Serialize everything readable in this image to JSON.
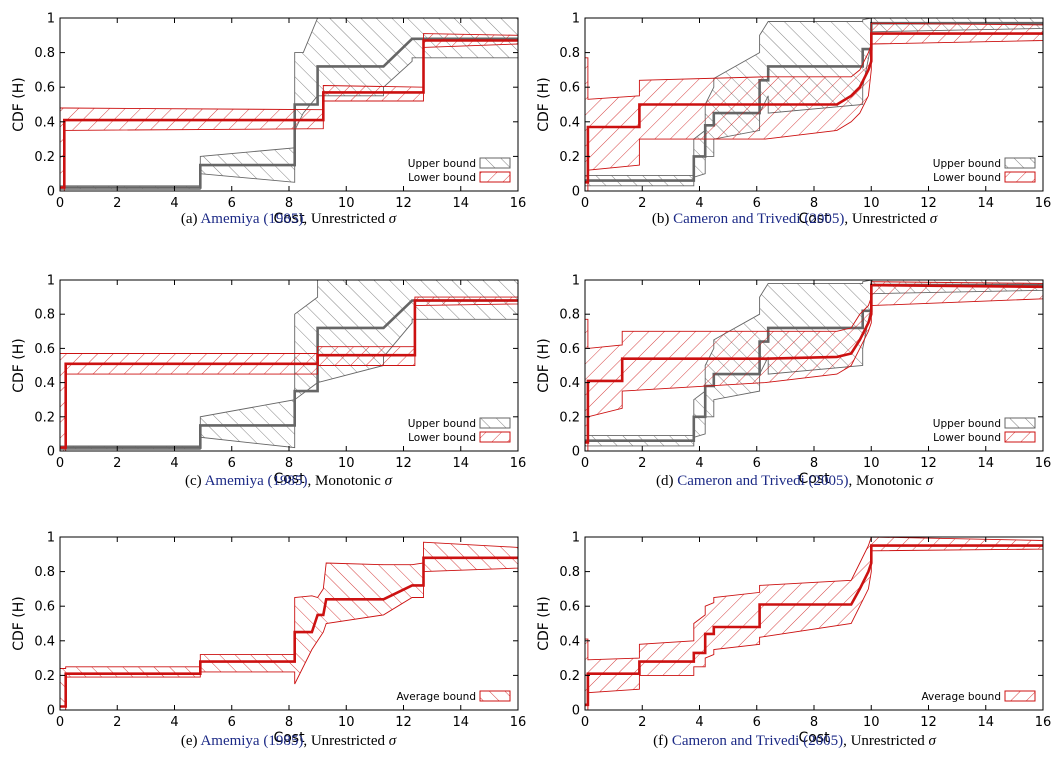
{
  "chart_data": [
    {
      "type": "line",
      "panel_id": "a",
      "xlabel": "Cost",
      "ylabel": "CDF (H)",
      "xlim": [
        0,
        16
      ],
      "ylim": [
        0,
        1
      ],
      "xticks": [
        "0",
        "2",
        "4",
        "6",
        "8",
        "10",
        "12",
        "14",
        "16"
      ],
      "yticks": [
        "0",
        "0.2",
        "0.4",
        "0.6",
        "0.8",
        "1"
      ],
      "legend_position": "bottom-right",
      "caption": {
        "label": "(a)",
        "ref_author": "Amemiya",
        "ref_year": "1985",
        "text": ", Unrestricted",
        "symbol": "σ"
      },
      "series": [
        {
          "name": "Upper bound",
          "color": "#666666",
          "hatch": "backslash",
          "x": [
            0,
            4.9,
            4.9,
            8.2,
            8.2,
            8.5,
            8.5,
            9.0,
            9.0,
            11.3,
            11.3,
            12.3,
            12.3,
            16
          ],
          "mid": [
            0.02,
            0.02,
            0.15,
            0.15,
            0.5,
            0.5,
            0.5,
            0.5,
            0.72,
            0.72,
            0.72,
            0.88,
            0.88,
            0.88
          ],
          "lo": [
            0.01,
            0.01,
            0.1,
            0.05,
            0.35,
            0.45,
            0.45,
            0.55,
            0.55,
            0.55,
            0.6,
            0.75,
            0.77,
            0.77
          ],
          "hi": [
            0.03,
            0.03,
            0.2,
            0.25,
            0.8,
            0.8,
            0.8,
            1.0,
            1.0,
            1.0,
            1.0,
            1.0,
            1.0,
            1.0
          ]
        },
        {
          "name": "Lower bound",
          "color": "#cc1111",
          "hatch": "slash",
          "x": [
            0,
            0.15,
            0.15,
            9.2,
            9.2,
            12.7,
            12.7,
            16
          ],
          "mid": [
            0.02,
            0.02,
            0.41,
            0.41,
            0.57,
            0.57,
            0.87,
            0.87
          ],
          "lo": [
            0.0,
            0.0,
            0.35,
            0.36,
            0.52,
            0.52,
            0.83,
            0.85
          ],
          "hi": [
            0.48,
            0.48,
            0.48,
            0.47,
            0.61,
            0.6,
            0.91,
            0.9
          ]
        }
      ]
    },
    {
      "type": "line",
      "panel_id": "b",
      "xlabel": "Cost",
      "ylabel": "CDF (H)",
      "xlim": [
        0,
        16
      ],
      "ylim": [
        0,
        1
      ],
      "xticks": [
        "0",
        "2",
        "4",
        "6",
        "8",
        "10",
        "12",
        "14",
        "16"
      ],
      "yticks": [
        "0",
        "0.2",
        "0.4",
        "0.6",
        "0.8",
        "1"
      ],
      "legend_position": "bottom-right",
      "caption": {
        "label": "(b)",
        "ref_author": "Cameron and Trivedi",
        "ref_year": "2005",
        "text": ", Unrestricted",
        "symbol": "σ"
      },
      "series": [
        {
          "name": "Upper bound",
          "color": "#666666",
          "hatch": "backslash",
          "x": [
            0,
            3.8,
            3.8,
            4.2,
            4.2,
            4.5,
            4.5,
            6.1,
            6.1,
            6.4,
            6.4,
            9.7,
            9.7,
            10.0,
            10.0,
            16
          ],
          "mid": [
            0.06,
            0.06,
            0.2,
            0.2,
            0.38,
            0.38,
            0.45,
            0.45,
            0.64,
            0.64,
            0.72,
            0.72,
            0.82,
            0.82,
            0.97,
            0.97
          ],
          "lo": [
            0.03,
            0.03,
            0.08,
            0.1,
            0.2,
            0.2,
            0.3,
            0.35,
            0.45,
            0.55,
            0.45,
            0.5,
            0.6,
            0.85,
            0.92,
            0.94
          ],
          "hi": [
            0.09,
            0.09,
            0.3,
            0.35,
            0.5,
            0.6,
            0.65,
            0.8,
            0.9,
            0.98,
            0.98,
            0.98,
            0.99,
            1.0,
            1.0,
            1.0
          ]
        },
        {
          "name": "Lower bound",
          "color": "#cc1111",
          "hatch": "slash",
          "x": [
            0,
            0.1,
            0.1,
            1.9,
            1.9,
            6.3,
            6.3,
            8.8,
            9.3,
            9.6,
            9.9,
            10.0,
            10.0,
            16
          ],
          "mid": [
            0.05,
            0.05,
            0.37,
            0.37,
            0.5,
            0.5,
            0.5,
            0.5,
            0.55,
            0.6,
            0.7,
            0.75,
            0.91,
            0.91
          ],
          "lo": [
            0.0,
            0.0,
            0.12,
            0.15,
            0.3,
            0.3,
            0.3,
            0.35,
            0.4,
            0.45,
            0.55,
            0.7,
            0.85,
            0.87
          ],
          "hi": [
            0.77,
            0.77,
            0.53,
            0.55,
            0.64,
            0.66,
            0.66,
            0.66,
            0.66,
            0.7,
            0.8,
            0.85,
            0.97,
            0.96
          ]
        }
      ]
    },
    {
      "type": "line",
      "panel_id": "c",
      "xlabel": "Cost",
      "ylabel": "CDF (H)",
      "xlim": [
        0,
        16
      ],
      "ylim": [
        0,
        1
      ],
      "xticks": [
        "0",
        "2",
        "4",
        "6",
        "8",
        "10",
        "12",
        "14",
        "16"
      ],
      "yticks": [
        "0",
        "0.2",
        "0.4",
        "0.6",
        "0.8",
        "1"
      ],
      "legend_position": "bottom-right",
      "caption": {
        "label": "(c)",
        "ref_author": "Amemiya",
        "ref_year": "1985",
        "text": ", Monotonic",
        "symbol": "σ"
      },
      "series": [
        {
          "name": "Upper bound",
          "color": "#666666",
          "hatch": "backslash",
          "x": [
            0,
            4.9,
            4.9,
            8.2,
            8.2,
            9.0,
            9.0,
            11.3,
            11.3,
            12.3,
            12.3,
            16
          ],
          "mid": [
            0.02,
            0.02,
            0.15,
            0.15,
            0.35,
            0.35,
            0.72,
            0.72,
            0.72,
            0.88,
            0.88,
            0.88
          ],
          "lo": [
            0.01,
            0.01,
            0.08,
            0.02,
            0.3,
            0.4,
            0.4,
            0.5,
            0.55,
            0.75,
            0.77,
            0.77
          ],
          "hi": [
            0.03,
            0.03,
            0.2,
            0.3,
            0.8,
            0.9,
            1.0,
            1.0,
            1.0,
            1.0,
            1.0,
            1.0
          ]
        },
        {
          "name": "Lower bound",
          "color": "#cc1111",
          "hatch": "slash",
          "x": [
            0,
            0.2,
            0.2,
            9.0,
            9.0,
            12.4,
            12.4,
            16
          ],
          "mid": [
            0.02,
            0.02,
            0.51,
            0.51,
            0.56,
            0.56,
            0.88,
            0.88
          ],
          "lo": [
            0.0,
            0.0,
            0.45,
            0.45,
            0.5,
            0.5,
            0.85,
            0.86
          ],
          "hi": [
            0.57,
            0.57,
            0.57,
            0.57,
            0.61,
            0.61,
            0.9,
            0.9
          ]
        }
      ]
    },
    {
      "type": "line",
      "panel_id": "d",
      "xlabel": "Cost",
      "ylabel": "CDF (H)",
      "xlim": [
        0,
        16
      ],
      "ylim": [
        0,
        1
      ],
      "xticks": [
        "0",
        "2",
        "4",
        "6",
        "8",
        "10",
        "12",
        "14",
        "16"
      ],
      "yticks": [
        "0",
        "0.2",
        "0.4",
        "0.6",
        "0.8",
        "1"
      ],
      "legend_position": "bottom-right",
      "caption": {
        "label": "(d)",
        "ref_author": "Cameron and Trivedi",
        "ref_year": "2005",
        "text": ", Monotonic",
        "symbol": "σ"
      },
      "series": [
        {
          "name": "Upper bound",
          "color": "#666666",
          "hatch": "backslash",
          "x": [
            0,
            3.8,
            3.8,
            4.2,
            4.2,
            4.5,
            4.5,
            6.1,
            6.1,
            6.4,
            6.4,
            9.7,
            9.7,
            10.0,
            10.0,
            16
          ],
          "mid": [
            0.06,
            0.06,
            0.2,
            0.2,
            0.38,
            0.38,
            0.45,
            0.45,
            0.64,
            0.64,
            0.72,
            0.72,
            0.82,
            0.82,
            0.97,
            0.97
          ],
          "lo": [
            0.03,
            0.03,
            0.08,
            0.1,
            0.2,
            0.2,
            0.3,
            0.35,
            0.45,
            0.55,
            0.45,
            0.5,
            0.6,
            0.85,
            0.92,
            0.94
          ],
          "hi": [
            0.09,
            0.09,
            0.3,
            0.35,
            0.5,
            0.6,
            0.65,
            0.8,
            0.9,
            0.98,
            0.98,
            0.98,
            0.99,
            1.0,
            1.0,
            1.0
          ]
        },
        {
          "name": "Lower bound",
          "color": "#cc1111",
          "hatch": "slash",
          "x": [
            0,
            0.1,
            0.1,
            1.3,
            1.3,
            6.3,
            8.8,
            9.3,
            9.6,
            9.9,
            10.0,
            10.0,
            16
          ],
          "mid": [
            0.05,
            0.05,
            0.41,
            0.41,
            0.54,
            0.54,
            0.55,
            0.57,
            0.65,
            0.75,
            0.8,
            0.97,
            0.96
          ],
          "lo": [
            0.0,
            0.0,
            0.2,
            0.25,
            0.35,
            0.4,
            0.45,
            0.5,
            0.6,
            0.7,
            0.75,
            0.85,
            0.89
          ],
          "hi": [
            0.77,
            0.77,
            0.6,
            0.62,
            0.7,
            0.7,
            0.7,
            0.72,
            0.8,
            0.85,
            0.9,
            0.99,
            0.98
          ]
        }
      ]
    },
    {
      "type": "line",
      "panel_id": "e",
      "xlabel": "Cost",
      "ylabel": "CDF (H)",
      "xlim": [
        0,
        16
      ],
      "ylim": [
        0,
        1
      ],
      "xticks": [
        "0",
        "2",
        "4",
        "6",
        "8",
        "10",
        "12",
        "14",
        "16"
      ],
      "yticks": [
        "0",
        "0.2",
        "0.4",
        "0.6",
        "0.8",
        "1"
      ],
      "legend_position": "bottom-right",
      "caption": {
        "label": "(e)",
        "ref_author": "Amemiya",
        "ref_year": "1985",
        "text": ", Unrestricted",
        "symbol": "σ"
      },
      "series": [
        {
          "name": "Average bound",
          "color": "#cc1111",
          "hatch": "backslash",
          "x": [
            0,
            0.2,
            0.2,
            4.9,
            4.9,
            8.2,
            8.2,
            8.8,
            9.0,
            9.2,
            9.3,
            11.3,
            12.3,
            12.7,
            12.7,
            16
          ],
          "mid": [
            0.02,
            0.02,
            0.21,
            0.21,
            0.28,
            0.28,
            0.45,
            0.45,
            0.55,
            0.55,
            0.64,
            0.64,
            0.72,
            0.72,
            0.88,
            0.88
          ],
          "lo": [
            0.0,
            0.0,
            0.19,
            0.19,
            0.22,
            0.22,
            0.15,
            0.35,
            0.4,
            0.45,
            0.5,
            0.55,
            0.65,
            0.65,
            0.8,
            0.82
          ],
          "hi": [
            0.24,
            0.24,
            0.25,
            0.25,
            0.32,
            0.32,
            0.65,
            0.66,
            0.65,
            0.7,
            0.85,
            0.84,
            0.84,
            0.85,
            0.97,
            0.94
          ]
        }
      ]
    },
    {
      "type": "line",
      "panel_id": "f",
      "xlabel": "Cost",
      "ylabel": "CDF (H)",
      "xlim": [
        0,
        16
      ],
      "ylim": [
        0,
        1
      ],
      "xticks": [
        "0",
        "2",
        "4",
        "6",
        "8",
        "10",
        "12",
        "14",
        "16"
      ],
      "yticks": [
        "0",
        "0.2",
        "0.4",
        "0.6",
        "0.8",
        "1"
      ],
      "legend_position": "bottom-right",
      "caption": {
        "label": "(f)",
        "ref_author": "Cameron and Trivedi",
        "ref_year": "2005",
        "text": ", Unrestricted",
        "symbol": "σ"
      },
      "series": [
        {
          "name": "Average bound",
          "color": "#cc1111",
          "hatch": "slash",
          "x": [
            0,
            0.1,
            0.1,
            1.9,
            1.9,
            3.8,
            3.8,
            4.2,
            4.2,
            4.5,
            4.5,
            6.1,
            6.1,
            9.3,
            9.6,
            9.9,
            10.0,
            10.0,
            16
          ],
          "mid": [
            0.03,
            0.03,
            0.21,
            0.21,
            0.28,
            0.28,
            0.33,
            0.33,
            0.44,
            0.44,
            0.48,
            0.48,
            0.61,
            0.61,
            0.7,
            0.8,
            0.85,
            0.95,
            0.95
          ],
          "lo": [
            0.0,
            0.0,
            0.1,
            0.12,
            0.2,
            0.2,
            0.25,
            0.25,
            0.3,
            0.32,
            0.35,
            0.38,
            0.42,
            0.5,
            0.6,
            0.7,
            0.8,
            0.92,
            0.93
          ],
          "hi": [
            0.41,
            0.41,
            0.29,
            0.3,
            0.38,
            0.4,
            0.5,
            0.55,
            0.6,
            0.62,
            0.65,
            0.68,
            0.72,
            0.75,
            0.85,
            0.95,
            1.0,
            1.0,
            0.98
          ]
        }
      ]
    }
  ]
}
